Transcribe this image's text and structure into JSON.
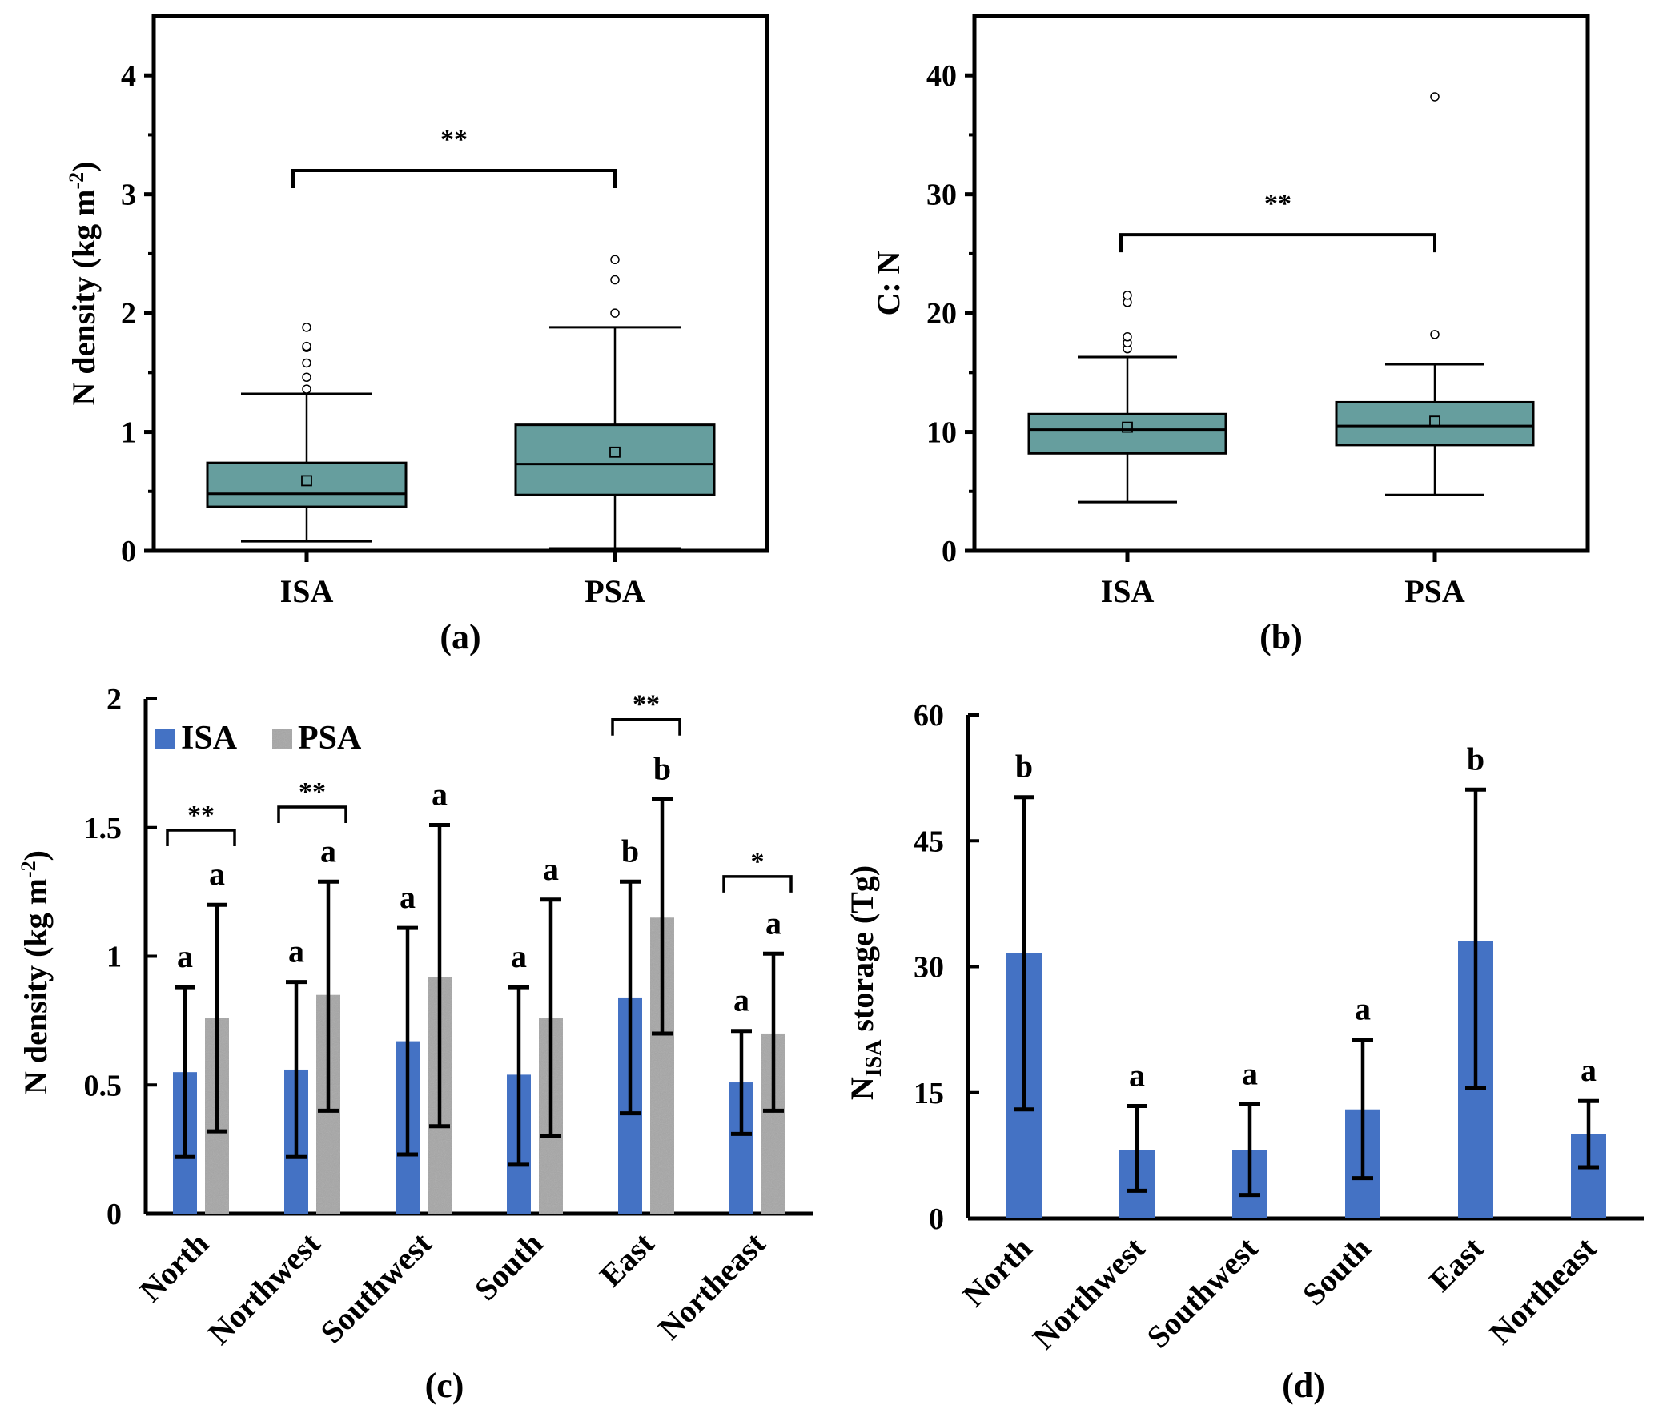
{
  "colors": {
    "box_fill": "#669e9e",
    "isa_bar": "#4472c4",
    "psa_bar": "#a6a6a6",
    "axis": "#000000"
  },
  "chart_data": [
    {
      "id": "a",
      "type": "box",
      "panel_label": "(a)",
      "title": "",
      "xlabel": "",
      "ylabel": "N density (kg m",
      "ylabel_sup": "-2",
      "ylabel_tail": ")",
      "ylim": [
        0,
        4.5
      ],
      "yticks": [
        0,
        1,
        2,
        3,
        4
      ],
      "ytick_labels": [
        "0",
        "1",
        "2",
        "3",
        "4"
      ],
      "minor_yticks": [
        0.5,
        1.5,
        2.5,
        3.5
      ],
      "categories": [
        "ISA",
        "PSA"
      ],
      "boxes": [
        {
          "name": "ISA",
          "whisker_low": 0.08,
          "q1": 0.37,
          "median": 0.48,
          "mean": 0.59,
          "q3": 0.74,
          "whisker_high": 1.32,
          "outliers": [
            1.36,
            1.46,
            1.58,
            1.71,
            1.72,
            1.88
          ]
        },
        {
          "name": "PSA",
          "whisker_low": 0.02,
          "q1": 0.47,
          "median": 0.73,
          "mean": 0.83,
          "q3": 1.06,
          "whisker_high": 1.88,
          "outliers": [
            2.0,
            2.28,
            2.45
          ]
        }
      ],
      "significance": {
        "text": "**",
        "from": "ISA",
        "to": "PSA",
        "level": 3.2
      }
    },
    {
      "id": "b",
      "type": "box",
      "panel_label": "(b)",
      "title": "",
      "xlabel": "",
      "ylabel": "C: N",
      "ylim": [
        0,
        45
      ],
      "yticks": [
        0,
        10,
        20,
        30,
        40
      ],
      "ytick_labels": [
        "0",
        "10",
        "20",
        "30",
        "40"
      ],
      "minor_yticks": [
        5,
        15,
        25,
        35
      ],
      "categories": [
        "ISA",
        "PSA"
      ],
      "boxes": [
        {
          "name": "ISA",
          "whisker_low": 4.1,
          "q1": 8.2,
          "median": 10.2,
          "mean": 10.4,
          "q3": 11.5,
          "whisker_high": 16.3,
          "outliers": [
            17.0,
            17.5,
            18.0,
            20.9,
            21.5
          ]
        },
        {
          "name": "PSA",
          "whisker_low": 4.7,
          "q1": 8.9,
          "median": 10.5,
          "mean": 10.9,
          "q3": 12.5,
          "whisker_high": 15.7,
          "outliers": [
            18.2,
            38.2
          ]
        }
      ],
      "significance": {
        "text": "**",
        "from": "ISA",
        "to": "PSA",
        "level": 26.6
      }
    },
    {
      "id": "c",
      "type": "bar",
      "panel_label": "(c)",
      "title": "",
      "xlabel": "",
      "ylabel": "N density (kg m",
      "ylabel_sup": "-2",
      "ylabel_tail": ")",
      "ylim": [
        0,
        2
      ],
      "yticks": [
        0,
        0.5,
        1,
        1.5,
        2
      ],
      "ytick_labels": [
        "0",
        "0.5",
        "1",
        "1.5",
        "2"
      ],
      "legend": {
        "position": "top-left",
        "entries": [
          "ISA",
          "PSA"
        ]
      },
      "categories": [
        "North",
        "Northwest",
        "Southwest",
        "South",
        "East",
        "Northeast"
      ],
      "series": [
        {
          "name": "ISA",
          "values": [
            0.55,
            0.56,
            0.67,
            0.54,
            0.84,
            0.51
          ],
          "err_low": [
            0.22,
            0.22,
            0.23,
            0.19,
            0.39,
            0.31
          ],
          "err_high": [
            0.88,
            0.9,
            1.11,
            0.88,
            1.29,
            0.71
          ],
          "letters": [
            "a",
            "a",
            "a",
            "a",
            "b",
            "a"
          ]
        },
        {
          "name": "PSA",
          "values": [
            0.76,
            0.85,
            0.92,
            0.76,
            1.15,
            0.7
          ],
          "err_low": [
            0.32,
            0.4,
            0.34,
            0.3,
            0.7,
            0.4
          ],
          "err_high": [
            1.2,
            1.29,
            1.51,
            1.22,
            1.61,
            1.01
          ],
          "letters": [
            "a",
            "a",
            "a",
            "a",
            "b",
            "a"
          ]
        }
      ],
      "significance": [
        {
          "category": "North",
          "text": "**",
          "level": 1.49
        },
        {
          "category": "Northwest",
          "text": "**",
          "level": 1.58
        },
        {
          "category": "East",
          "text": "**",
          "level": 1.92
        },
        {
          "category": "Northeast",
          "text": "*",
          "level": 1.31
        }
      ]
    },
    {
      "id": "d",
      "type": "bar",
      "panel_label": "(d)",
      "title": "",
      "xlabel": "",
      "ylabel_main": "N",
      "ylabel_sub": "ISA",
      "ylabel_tail": " storage (Tg)",
      "ylim": [
        0,
        60
      ],
      "yticks": [
        0,
        15,
        30,
        45,
        60
      ],
      "ytick_labels": [
        "0",
        "15",
        "30",
        "45",
        "60"
      ],
      "categories": [
        "North",
        "Northwest",
        "Southwest",
        "South",
        "East",
        "Northeast"
      ],
      "series": [
        {
          "name": "ISA",
          "values": [
            31.6,
            8.2,
            8.2,
            13.0,
            33.1,
            10.1
          ],
          "err_low": [
            13.0,
            3.3,
            2.8,
            4.8,
            15.5,
            6.1
          ],
          "err_high": [
            50.2,
            13.4,
            13.6,
            21.3,
            51.1,
            14.0
          ],
          "letters": [
            "b",
            "a",
            "a",
            "a",
            "b",
            "a"
          ]
        }
      ]
    }
  ]
}
